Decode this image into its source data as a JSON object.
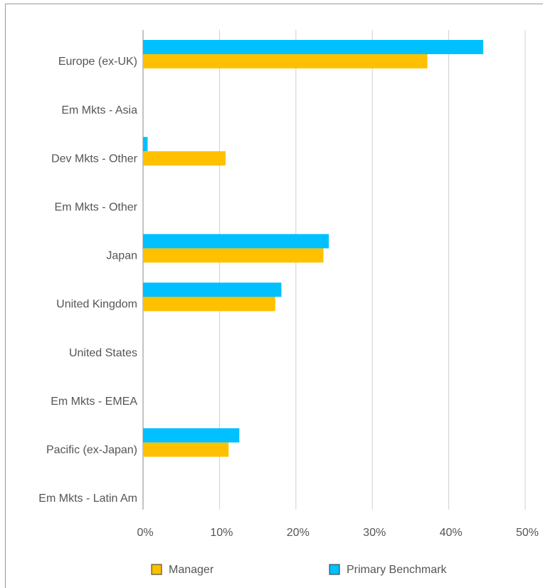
{
  "chart_data": {
    "type": "bar",
    "orientation": "horizontal",
    "categories": [
      "Europe (ex-UK)",
      "Em Mkts - Asia",
      "Dev Mkts - Other",
      "Em Mkts - Other",
      "Japan",
      "United Kingdom",
      "United States",
      "Em Mkts - EMEA",
      "Pacific (ex-Japan)",
      "Em Mkts - Latin Am"
    ],
    "series": [
      {
        "name": "Manager",
        "color": "#ffc000",
        "values": [
          37.2,
          0,
          10.8,
          0,
          23.6,
          17.3,
          0,
          0,
          11.2,
          0
        ]
      },
      {
        "name": "Primary Benchmark",
        "color": "#00c0ff",
        "values": [
          44.5,
          0,
          0.6,
          0,
          24.3,
          18.1,
          0,
          0,
          12.6,
          0
        ]
      }
    ],
    "xlim": [
      0,
      50
    ],
    "xticks": [
      {
        "value": 0,
        "label": "0%"
      },
      {
        "value": 10,
        "label": "10%"
      },
      {
        "value": 20,
        "label": "20%"
      },
      {
        "value": 30,
        "label": "30%"
      },
      {
        "value": 40,
        "label": "40%"
      },
      {
        "value": 50,
        "label": "50%"
      }
    ],
    "grid": true,
    "legend": "bottom"
  }
}
